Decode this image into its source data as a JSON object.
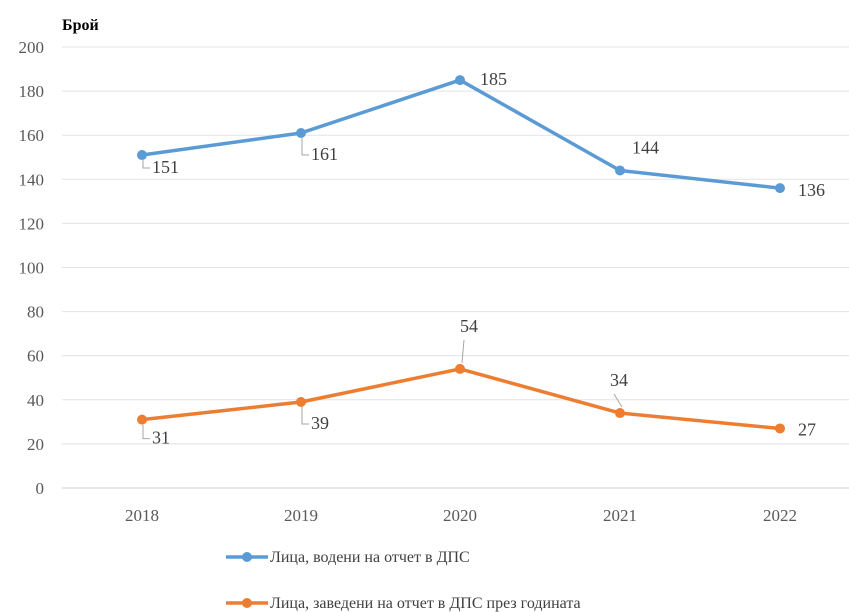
{
  "chart_data": {
    "type": "line",
    "title": "",
    "xlabel": "",
    "ylabel": "Брой",
    "ylim": [
      0,
      200
    ],
    "ystep": 20,
    "grid": true,
    "legend_position": "bottom",
    "categories": [
      "2018",
      "2019",
      "2020",
      "2021",
      "2022"
    ],
    "series": [
      {
        "name": "Лица, водени на отчет в ДПС",
        "color": "#5B9BD5",
        "values": [
          151,
          161,
          185,
          144,
          136
        ]
      },
      {
        "name": "Лица, заведени на отчет в ДПС през годината",
        "color": "#ED7D31",
        "values": [
          31,
          39,
          54,
          34,
          27
        ]
      }
    ]
  }
}
